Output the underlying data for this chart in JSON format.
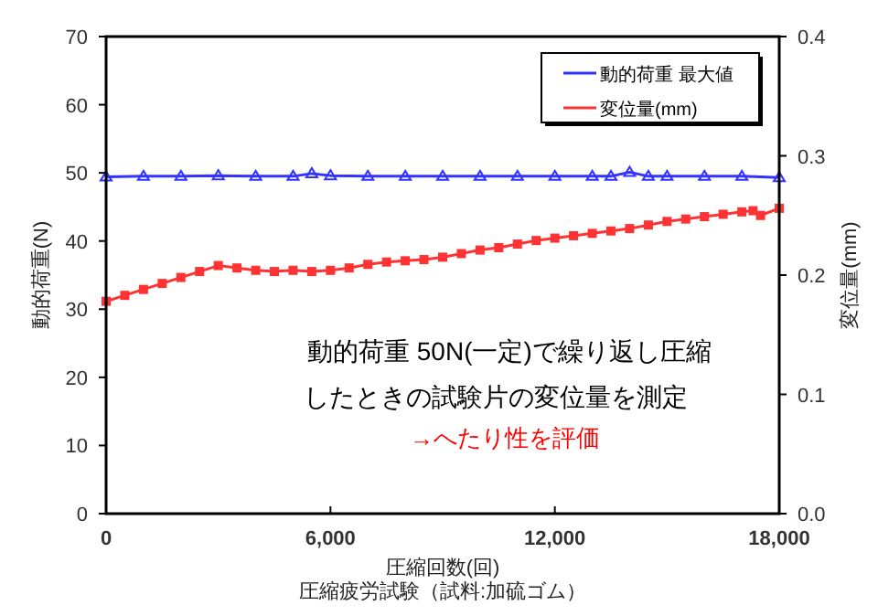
{
  "chart_data": {
    "type": "line",
    "xlabel": "圧縮回数(回)",
    "ylabel": "動的荷重(N)",
    "y2label": "変位量(mm)",
    "annotations": [
      "動的荷重 50N(一定)で繰り返し圧縮",
      "したときの試験片の変位量を測定",
      "→へたり性を評価",
      "圧縮疲労試験（試料:加硫ゴム）"
    ],
    "xlim": [
      0,
      18000
    ],
    "xticks": [
      0,
      {
        "value": 6000,
        "label": "6,000"
      },
      {
        "value": 12000,
        "label": "12,000"
      },
      {
        "value": 18000,
        "label": "18,000"
      }
    ],
    "ylim": [
      0,
      70
    ],
    "yticks": [
      0,
      10,
      20,
      30,
      40,
      50,
      60,
      70
    ],
    "y2lim": [
      0,
      0.4
    ],
    "y2ticks": [
      {
        "value": 0,
        "label": "0.0"
      },
      0.1,
      0.2,
      0.3,
      0.4
    ],
    "grid": false,
    "legend": "top right",
    "line_style": "solid",
    "series": [
      {
        "name": "動的荷重 最大値",
        "color": "#3333ff",
        "marker": "triangle",
        "x": [
          0,
          1000,
          2000,
          3000,
          4000,
          5000,
          5500,
          6000,
          7000,
          8000,
          9000,
          10000,
          11000,
          12000,
          13000,
          13500,
          14000,
          14500,
          15000,
          16000,
          17000,
          18000
        ],
        "values": [
          49.4,
          49.5,
          49.5,
          49.6,
          49.5,
          49.5,
          49.9,
          49.6,
          49.5,
          49.5,
          49.5,
          49.5,
          49.5,
          49.5,
          49.5,
          49.5,
          50.1,
          49.5,
          49.5,
          49.5,
          49.5,
          49.3
        ]
      },
      {
        "name": "変位量(mm)",
        "color": "#ff3333",
        "marker": "square",
        "axis": "y2",
        "x": [
          0,
          500,
          1000,
          1500,
          2000,
          2500,
          3000,
          3500,
          4000,
          4500,
          5000,
          5500,
          6000,
          6500,
          7000,
          7500,
          8000,
          8500,
          9000,
          9500,
          10000,
          10500,
          11000,
          11500,
          12000,
          12500,
          13000,
          13500,
          14000,
          14500,
          15000,
          15500,
          16000,
          16500,
          17000,
          17300,
          17500,
          18000
        ],
        "values": [
          0.178,
          0.183,
          0.188,
          0.193,
          0.198,
          0.203,
          0.208,
          0.206,
          0.204,
          0.203,
          0.204,
          0.203,
          0.204,
          0.206,
          0.209,
          0.211,
          0.212,
          0.213,
          0.215,
          0.218,
          0.221,
          0.223,
          0.226,
          0.229,
          0.231,
          0.233,
          0.235,
          0.237,
          0.239,
          0.242,
          0.245,
          0.247,
          0.249,
          0.251,
          0.253,
          0.254,
          0.25,
          0.256
        ]
      }
    ]
  }
}
